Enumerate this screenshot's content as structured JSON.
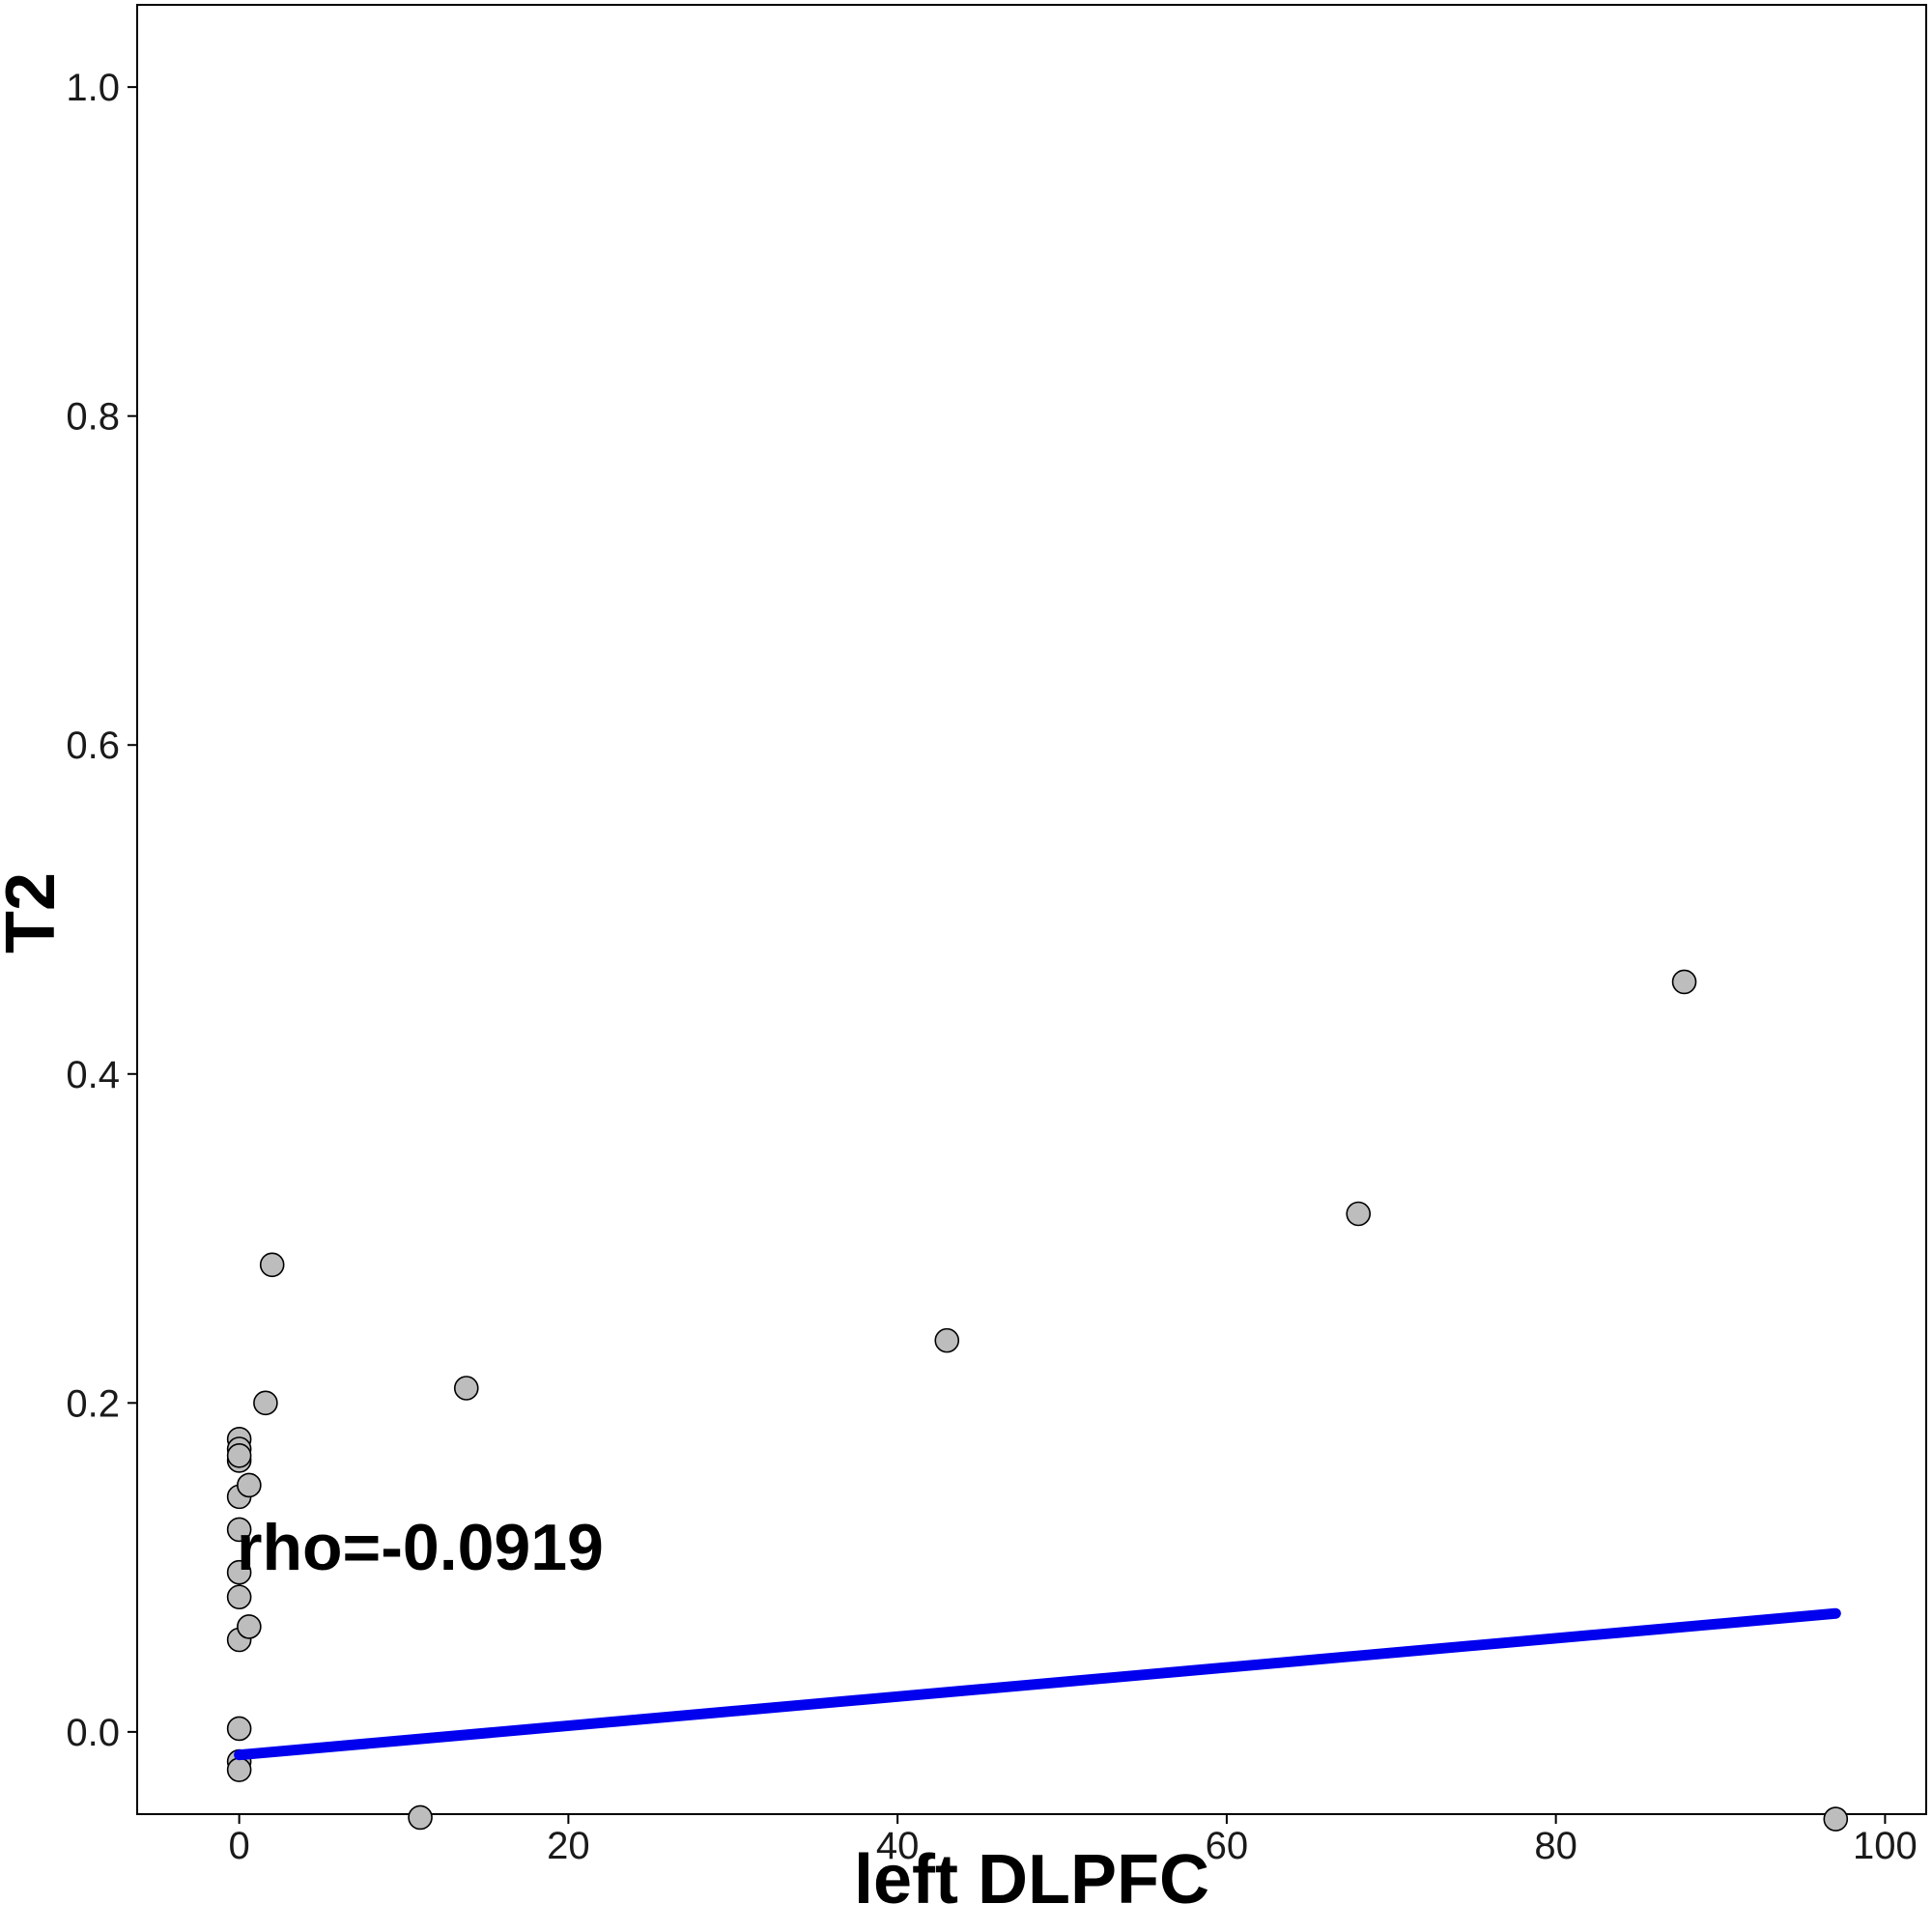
{
  "chart_data": {
    "type": "scatter",
    "title": "",
    "xlabel": "left DLPFC",
    "ylabel": "T2",
    "xlim": [
      -6.2,
      102.5
    ],
    "ylim": [
      -0.05,
      1.05
    ],
    "x_ticks": [
      0,
      20,
      40,
      60,
      80,
      100
    ],
    "y_ticks": [
      0.0,
      0.2,
      0.4,
      0.6,
      0.8,
      1.0
    ],
    "x_tick_labels": [
      "0",
      "20",
      "40",
      "60",
      "80",
      "100"
    ],
    "y_tick_labels": [
      "0.0",
      "0.2",
      "0.4",
      "0.6",
      "0.8",
      "1.0"
    ],
    "grid": false,
    "annotation": "rho=-0.0919",
    "series": [
      {
        "points": [
          [
            0,
            0.178
          ],
          [
            0,
            0.172
          ],
          [
            0,
            0.165
          ],
          [
            0,
            0.168
          ],
          [
            0,
            0.143
          ],
          [
            0,
            0.123
          ],
          [
            0,
            0.097
          ],
          [
            0,
            0.082
          ],
          [
            0,
            0.056
          ],
          [
            0,
            0.002
          ],
          [
            0,
            -0.018
          ],
          [
            0,
            -0.023
          ],
          [
            0.6,
            0.15
          ],
          [
            0.6,
            0.064
          ],
          [
            1.6,
            0.2
          ],
          [
            2.0,
            0.284
          ],
          [
            11.0,
            -0.052
          ],
          [
            13.8,
            0.209
          ],
          [
            43.0,
            0.238
          ],
          [
            68.0,
            0.315
          ],
          [
            87.8,
            0.456
          ],
          [
            97.0,
            -0.053
          ]
        ]
      }
    ],
    "fit_line": {
      "x": [
        0,
        97
      ],
      "y": [
        -0.014,
        0.072
      ]
    },
    "colors": {
      "point_fill": "#bdbdbd",
      "point_stroke": "#000000",
      "fit_line": "#0000ee",
      "axis": "#000000"
    }
  }
}
